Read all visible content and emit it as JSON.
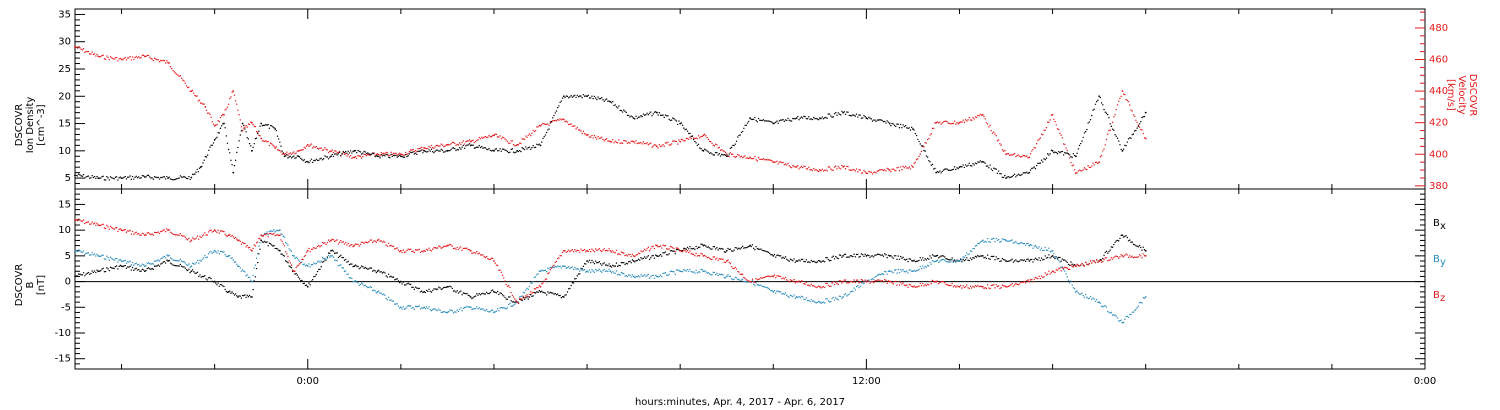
{
  "chart_data": [
    {
      "type": "scatter",
      "panel": "plasma",
      "ylabel_lines": [
        "DSCOVR",
        "Ion Density",
        "[cm^-3]"
      ],
      "y2label_lines": [
        "DSCOVR",
        "Velocity",
        "[km/s]"
      ],
      "ylim": [
        3,
        36
      ],
      "y2lim": [
        378,
        492
      ],
      "yticks": [
        5,
        10,
        15,
        20,
        25,
        30,
        35
      ],
      "y2ticks": [
        380,
        400,
        420,
        440,
        460,
        480
      ],
      "colors": {
        "density": "#000000",
        "velocity": "#e31a1c"
      },
      "x_hours_range": [
        -5,
        24
      ],
      "series": [
        {
          "axis": "left",
          "x_hours": [
            -5,
            -4.5,
            -4,
            -3.5,
            -3,
            -2.5,
            -2.3,
            -2,
            -1.8,
            -1.6,
            -1.4,
            -1.2,
            -1,
            -0.7,
            -0.5,
            -0.2,
            0,
            0.5,
            1,
            1.5,
            2,
            2.5,
            3,
            3.5,
            4,
            4.5,
            5,
            5.5,
            6,
            6.5,
            7,
            7.5,
            8,
            8.5,
            9,
            9.5,
            10,
            10.5,
            11,
            11.5,
            12,
            12.5,
            13,
            13.5,
            14,
            14.5,
            15,
            15.5,
            16,
            16.5,
            17,
            17.5,
            18
          ],
          "values": [
            5.5,
            5,
            5,
            5.2,
            5,
            5.1,
            7,
            12,
            15,
            6,
            15,
            10,
            15,
            14,
            9,
            9,
            8,
            9,
            10,
            9,
            9,
            10,
            10,
            11,
            10,
            10,
            11,
            20,
            20,
            19,
            16,
            17,
            15,
            10,
            9,
            16,
            15,
            16,
            16,
            17,
            16,
            15,
            14,
            6,
            7,
            8,
            5,
            6,
            10,
            9,
            20,
            10,
            17
          ]
        },
        {
          "axis": "right",
          "x_hours": [
            -5,
            -4.5,
            -4,
            -3.5,
            -3,
            -2.5,
            -2.2,
            -2,
            -1.8,
            -1.6,
            -1.4,
            -1.2,
            -1,
            -0.7,
            -0.5,
            -0.2,
            0,
            0.5,
            1,
            1.5,
            2,
            2.5,
            3,
            3.5,
            4,
            4.5,
            5,
            5.5,
            6,
            6.5,
            7,
            7.5,
            8,
            8.5,
            9,
            9.5,
            10,
            10.5,
            11,
            11.5,
            12,
            12.5,
            13,
            13.5,
            14,
            14.5,
            15,
            15.5,
            16,
            16.5,
            17,
            17.5,
            18
          ],
          "values": [
            468,
            462,
            460,
            462,
            458,
            440,
            430,
            418,
            425,
            440,
            415,
            420,
            410,
            404,
            400,
            402,
            406,
            402,
            398,
            400,
            400,
            404,
            406,
            408,
            412,
            406,
            418,
            422,
            412,
            408,
            408,
            405,
            408,
            412,
            400,
            398,
            395,
            392,
            390,
            392,
            388,
            390,
            392,
            420,
            420,
            425,
            400,
            398,
            425,
            388,
            395,
            440,
            410
          ]
        }
      ]
    },
    {
      "type": "scatter",
      "panel": "magnetic",
      "ylabel_lines": [
        "DSCOVR",
        "B",
        "[nT]"
      ],
      "ylim": [
        -17,
        18
      ],
      "yticks": [
        -15,
        -10,
        -5,
        0,
        5,
        10,
        15
      ],
      "zero_line": true,
      "x_hours_range": [
        -5,
        24
      ],
      "series": [
        {
          "name": "Bx",
          "color": "#000000",
          "x_hours": [
            -5,
            -4.5,
            -4,
            -3.5,
            -3,
            -2.5,
            -2,
            -1.7,
            -1.5,
            -1.2,
            -1,
            -0.6,
            -0.3,
            0,
            0.5,
            1,
            1.5,
            2,
            2.5,
            3,
            3.5,
            4,
            4.5,
            5,
            5.5,
            6,
            6.5,
            7,
            7.5,
            8,
            8.5,
            9,
            9.5,
            10,
            10.5,
            11,
            11.5,
            12,
            12.5,
            13,
            13.5,
            14,
            14.5,
            15,
            15.5,
            16,
            16.5,
            17,
            17.5,
            18
          ],
          "values": [
            1,
            2,
            3,
            2,
            4,
            2,
            0,
            -2,
            -3,
            -3,
            8,
            6,
            2,
            -1,
            6,
            3,
            2,
            0,
            -2,
            -1,
            -3,
            -2,
            -4,
            -2,
            -3,
            4,
            3,
            4,
            5,
            6,
            7,
            6,
            7,
            5,
            4,
            4,
            5,
            5,
            5,
            4,
            5,
            4,
            5,
            4,
            4,
            5,
            3,
            4,
            9,
            6
          ]
        },
        {
          "name": "By",
          "color": "#2b8cbe",
          "x_hours": [
            -5,
            -4.5,
            -4,
            -3.5,
            -3,
            -2.5,
            -2,
            -1.7,
            -1.5,
            -1.2,
            -1,
            -0.6,
            -0.3,
            0,
            0.5,
            1,
            1.5,
            2,
            2.5,
            3,
            3.5,
            4,
            4.5,
            5,
            5.5,
            6,
            6.5,
            7,
            7.5,
            8,
            8.5,
            9,
            9.5,
            10,
            10.5,
            11,
            11.5,
            12,
            12.5,
            13,
            13.5,
            14,
            14.5,
            15,
            15.5,
            16,
            16.5,
            17,
            17.5,
            18
          ],
          "values": [
            6,
            5,
            4,
            3,
            5,
            3,
            6,
            5,
            3,
            0,
            9,
            10,
            5,
            3,
            5,
            0,
            -2,
            -5,
            -5,
            -6,
            -5,
            -6,
            -4,
            2,
            3,
            2,
            2,
            1,
            1,
            2,
            2,
            1,
            0,
            -2,
            -3,
            -4,
            -3,
            0,
            2,
            2,
            4,
            4,
            8,
            8,
            7,
            6,
            -2,
            -4,
            -8,
            -3
          ]
        },
        {
          "name": "Bz",
          "color": "#e31a1c",
          "x_hours": [
            -5,
            -4.5,
            -4,
            -3.5,
            -3,
            -2.5,
            -2,
            -1.7,
            -1.5,
            -1.2,
            -1,
            -0.6,
            -0.3,
            0,
            0.5,
            1,
            1.5,
            2,
            2.5,
            3,
            3.5,
            4,
            4.5,
            5,
            5.5,
            6,
            6.5,
            7,
            7.5,
            8,
            8.5,
            9,
            9.5,
            10,
            10.5,
            11,
            11.5,
            12,
            12.5,
            13,
            13.5,
            14,
            14.5,
            15,
            15.5,
            16,
            16.5,
            17,
            17.5,
            18
          ],
          "values": [
            12,
            11,
            10,
            9,
            10,
            8,
            10,
            9,
            8,
            6,
            9,
            9,
            2,
            6,
            8,
            7,
            8,
            6,
            6,
            7,
            6,
            4,
            -4,
            -1,
            6,
            6,
            6,
            5,
            7,
            6,
            5,
            4,
            0,
            1,
            0,
            -1,
            0,
            0,
            0,
            -1,
            0,
            -1,
            -1,
            -1,
            0,
            2,
            3,
            4,
            5,
            5
          ]
        }
      ]
    }
  ],
  "panel_labels": {
    "bx": "B",
    "bx_sub": "x",
    "by": "B",
    "by_sub": "y",
    "bz": "B",
    "bz_sub": "z"
  },
  "x_axis": {
    "tick_labels": [
      "0:00",
      "12:00",
      "0:00"
    ],
    "tick_hours": [
      0,
      12,
      24
    ],
    "title": "hours:minutes, Apr.  4, 2017 - Apr.  6, 2017"
  }
}
